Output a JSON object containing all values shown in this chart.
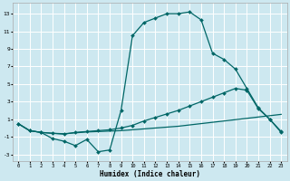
{
  "xlabel": "Humidex (Indice chaleur)",
  "bg_color": "#cde8f0",
  "grid_color": "#ffffff",
  "line_color": "#006666",
  "xlim": [
    -0.5,
    23.5
  ],
  "ylim": [
    -3.8,
    14.2
  ],
  "xticks": [
    0,
    1,
    2,
    3,
    4,
    5,
    6,
    7,
    8,
    9,
    10,
    11,
    12,
    13,
    14,
    15,
    16,
    17,
    18,
    19,
    20,
    21,
    22,
    23
  ],
  "yticks": [
    -3,
    -1,
    1,
    3,
    5,
    7,
    9,
    11,
    13
  ],
  "line1_x": [
    0,
    1,
    2,
    3,
    4,
    5,
    6,
    7,
    8,
    9,
    10,
    11,
    12,
    13,
    14,
    15,
    16,
    17,
    18,
    19,
    20,
    21,
    22,
    23
  ],
  "line1_y": [
    0.5,
    -0.3,
    -0.5,
    -1.2,
    -1.5,
    -2.0,
    -1.3,
    -2.7,
    -2.5,
    2.0,
    10.5,
    12.0,
    12.5,
    13.0,
    13.0,
    13.2,
    12.3,
    8.5,
    7.8,
    6.7,
    4.5,
    2.3,
    1.0,
    -0.5
  ],
  "line2_x": [
    0,
    1,
    2,
    3,
    4,
    5,
    6,
    7,
    8,
    9,
    10,
    11,
    12,
    13,
    14,
    15,
    16,
    17,
    18,
    19,
    20,
    21,
    22,
    23
  ],
  "line2_y": [
    0.5,
    -0.3,
    -0.5,
    -0.6,
    -0.7,
    -0.5,
    -0.4,
    -0.3,
    -0.2,
    0.0,
    0.3,
    0.8,
    1.2,
    1.6,
    2.0,
    2.5,
    3.0,
    3.5,
    4.0,
    4.5,
    4.3,
    2.2,
    1.0,
    -0.4
  ],
  "line3_x": [
    0,
    1,
    2,
    3,
    4,
    5,
    6,
    7,
    8,
    9,
    10,
    11,
    12,
    13,
    14,
    15,
    16,
    17,
    18,
    19,
    20,
    21,
    22,
    23
  ],
  "line3_y": [
    0.5,
    -0.3,
    -0.5,
    -0.6,
    -0.65,
    -0.55,
    -0.45,
    -0.4,
    -0.35,
    -0.3,
    -0.2,
    -0.1,
    0.0,
    0.1,
    0.2,
    0.35,
    0.5,
    0.65,
    0.8,
    0.95,
    1.1,
    1.25,
    1.4,
    1.55
  ]
}
